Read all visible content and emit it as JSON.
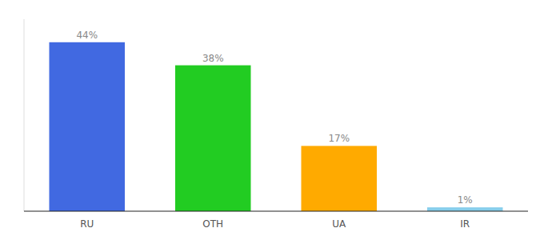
{
  "chart_data": {
    "type": "bar",
    "categories": [
      "RU",
      "OTH",
      "UA",
      "IR"
    ],
    "values": [
      44,
      38,
      17,
      1
    ],
    "value_labels": [
      "44%",
      "38%",
      "17%",
      "1%"
    ],
    "colors": [
      "#4169e1",
      "#22cc22",
      "#ffaa00",
      "#87ceeb"
    ],
    "ylim": [
      0,
      50
    ],
    "grid": false,
    "data_labels": true,
    "tick_labels": "x"
  }
}
